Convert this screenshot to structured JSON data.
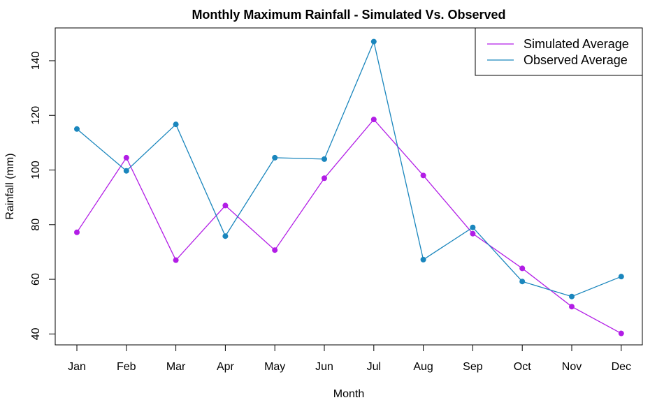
{
  "chart_data": {
    "type": "line",
    "title": "Monthly Maximum Rainfall - Simulated Vs. Observed",
    "xlabel": "Month",
    "ylabel": "Rainfall (mm)",
    "categories": [
      "Jan",
      "Feb",
      "Mar",
      "Apr",
      "May",
      "Jun",
      "Jul",
      "Aug",
      "Sep",
      "Oct",
      "Nov",
      "Dec"
    ],
    "yticks": [
      40,
      60,
      80,
      100,
      120,
      140
    ],
    "ylim": [
      36,
      152
    ],
    "grid": false,
    "legend_position": "top-right",
    "series": [
      {
        "name": "Simulated Average",
        "color": "#b21de6",
        "values": [
          77.2,
          104.5,
          67.0,
          87.0,
          70.7,
          97.0,
          118.5,
          98.0,
          76.7,
          64.0,
          50.0,
          40.2
        ]
      },
      {
        "name": "Observed Average",
        "color": "#1a86bd",
        "values": [
          115.0,
          99.7,
          116.7,
          75.8,
          104.5,
          104.0,
          147.0,
          67.2,
          79.0,
          59.2,
          53.7,
          61.0
        ]
      }
    ]
  }
}
